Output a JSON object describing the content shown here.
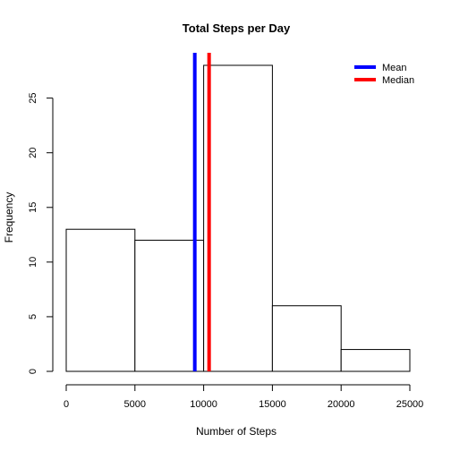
{
  "chart_data": {
    "type": "histogram",
    "title": "Total Steps per Day",
    "xlabel": "Number of Steps",
    "ylabel": "Frequency",
    "bins": [
      {
        "start": 0,
        "end": 5000,
        "count": 13
      },
      {
        "start": 5000,
        "end": 10000,
        "count": 12
      },
      {
        "start": 10000,
        "end": 15000,
        "count": 28
      },
      {
        "start": 15000,
        "end": 20000,
        "count": 6
      },
      {
        "start": 20000,
        "end": 25000,
        "count": 2
      }
    ],
    "xlim": [
      0,
      25000
    ],
    "ylim": [
      0,
      28
    ],
    "x_ticks": [
      0,
      5000,
      10000,
      15000,
      20000,
      25000
    ],
    "y_ticks": [
      0,
      5,
      10,
      15,
      20,
      25
    ],
    "grid": false,
    "bar_fill": "#ffffff",
    "bar_stroke": "#000000",
    "reference_lines": [
      {
        "name": "Mean",
        "value": 9354,
        "color": "#0000ff"
      },
      {
        "name": "Median",
        "value": 10395,
        "color": "#ff0000"
      }
    ],
    "legend_position": "top-right"
  }
}
